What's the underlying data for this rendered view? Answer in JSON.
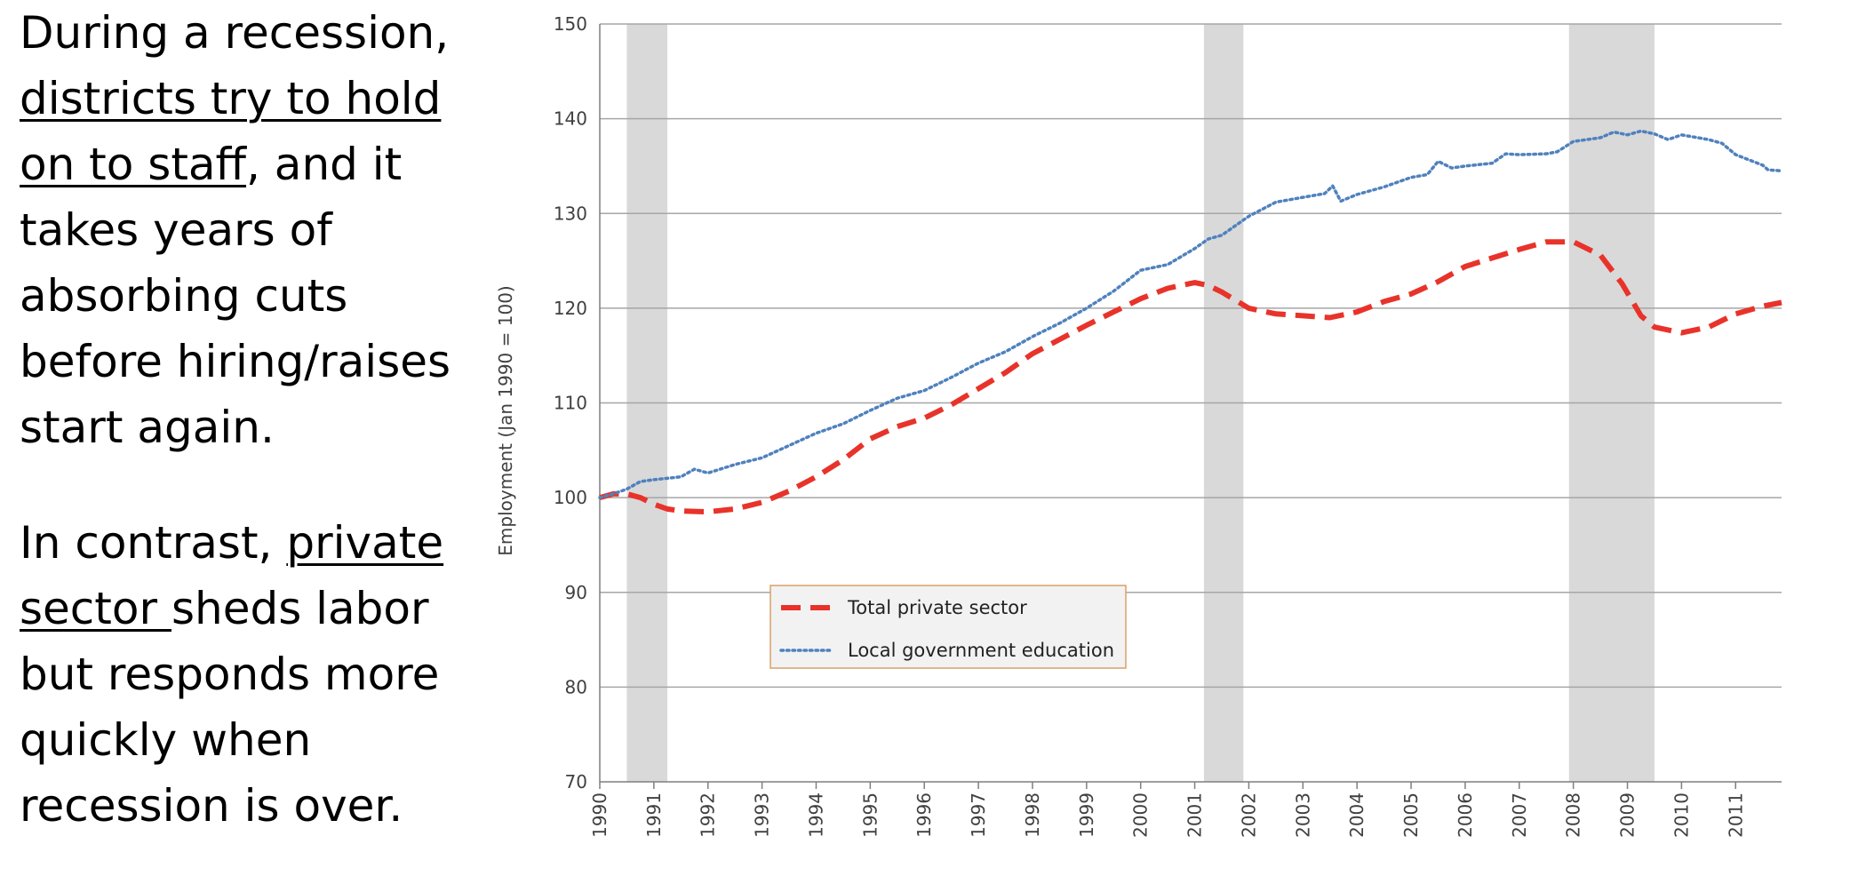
{
  "text": {
    "para1": [
      {
        "t": "During a recession, ",
        "u": false
      },
      {
        "t": "districts try to hold on to staff",
        "u": true
      },
      {
        "t": ", and it takes years of absorbing cuts before hiring/raises start again.",
        "u": false
      }
    ],
    "para2": [
      {
        "t": "In contrast, ",
        "u": false
      },
      {
        "t": "private sector ",
        "u": true
      },
      {
        "t": "sheds labor but responds more quickly when recession is over.",
        "u": false
      }
    ]
  },
  "chart_data": {
    "type": "line",
    "xlabel": "",
    "ylabel": "Employment (Jan 1990 = 100)",
    "ylim": [
      70,
      150
    ],
    "yticks": [
      70,
      80,
      90,
      100,
      110,
      120,
      130,
      140,
      150
    ],
    "xlim": [
      1990,
      2011.85
    ],
    "xticks": [
      "1990",
      "1991",
      "1992",
      "1993",
      "1994",
      "1995",
      "1996",
      "1997",
      "1998",
      "1999",
      "2000",
      "2001",
      "2002",
      "2003",
      "2004",
      "2005",
      "2006",
      "2007",
      "2008",
      "2009",
      "2010",
      "2011"
    ],
    "grid": true,
    "recessions": [
      [
        1990.5,
        1991.25
      ],
      [
        2001.17,
        2001.9
      ],
      [
        2007.92,
        2009.5
      ]
    ],
    "legend_position": "lower-left",
    "colors": {
      "private": "#e8332a",
      "education": "#4f81bd",
      "recession": "#d9d9d9",
      "legend_border": "#d9a06a"
    },
    "series": [
      {
        "name": "Total private sector",
        "style": "dashed",
        "points": [
          [
            1990,
            100
          ],
          [
            1990.25,
            100.4
          ],
          [
            1990.5,
            100.4
          ],
          [
            1990.75,
            100
          ],
          [
            1991,
            99.3
          ],
          [
            1991.25,
            98.8
          ],
          [
            1991.5,
            98.6
          ],
          [
            1992,
            98.5
          ],
          [
            1992.5,
            98.8
          ],
          [
            1993,
            99.5
          ],
          [
            1993.5,
            100.7
          ],
          [
            1994,
            102.2
          ],
          [
            1994.5,
            104
          ],
          [
            1995,
            106.2
          ],
          [
            1995.5,
            107.5
          ],
          [
            1996,
            108.4
          ],
          [
            1996.5,
            109.8
          ],
          [
            1997,
            111.5
          ],
          [
            1997.5,
            113.2
          ],
          [
            1998,
            115.2
          ],
          [
            1998.5,
            116.7
          ],
          [
            1999,
            118.2
          ],
          [
            1999.5,
            119.6
          ],
          [
            2000,
            121
          ],
          [
            2000.5,
            122.1
          ],
          [
            2001,
            122.7
          ],
          [
            2001.25,
            122.4
          ],
          [
            2001.5,
            121.7
          ],
          [
            2002,
            120
          ],
          [
            2002.5,
            119.4
          ],
          [
            2003,
            119.2
          ],
          [
            2003.5,
            119
          ],
          [
            2004,
            119.6
          ],
          [
            2004.5,
            120.7
          ],
          [
            2005,
            121.5
          ],
          [
            2005.5,
            122.8
          ],
          [
            2006,
            124.4
          ],
          [
            2006.5,
            125.3
          ],
          [
            2007,
            126.2
          ],
          [
            2007.5,
            127
          ],
          [
            2008,
            127
          ],
          [
            2008.5,
            125.6
          ],
          [
            2008.9,
            122.6
          ],
          [
            2009.25,
            119.2
          ],
          [
            2009.5,
            118
          ],
          [
            2010,
            117.4
          ],
          [
            2010.5,
            118
          ],
          [
            2011,
            119.4
          ],
          [
            2011.5,
            120.2
          ],
          [
            2011.85,
            120.6
          ]
        ]
      },
      {
        "name": "Local government education",
        "style": "dotted",
        "points": [
          [
            1990,
            100
          ],
          [
            1990.25,
            100.4
          ],
          [
            1990.5,
            100.9
          ],
          [
            1990.75,
            101.7
          ],
          [
            1991,
            101.9
          ],
          [
            1991.5,
            102.2
          ],
          [
            1991.75,
            103
          ],
          [
            1992,
            102.6
          ],
          [
            1992.5,
            103.5
          ],
          [
            1993,
            104.2
          ],
          [
            1993.5,
            105.5
          ],
          [
            1994,
            106.8
          ],
          [
            1994.5,
            107.8
          ],
          [
            1995,
            109.2
          ],
          [
            1995.5,
            110.5
          ],
          [
            1996,
            111.3
          ],
          [
            1996.5,
            112.7
          ],
          [
            1997,
            114.2
          ],
          [
            1997.5,
            115.4
          ],
          [
            1998,
            117
          ],
          [
            1998.5,
            118.4
          ],
          [
            1999,
            120
          ],
          [
            1999.5,
            121.8
          ],
          [
            2000,
            124
          ],
          [
            2000.5,
            124.6
          ],
          [
            2001,
            126.3
          ],
          [
            2001.25,
            127.3
          ],
          [
            2001.5,
            127.7
          ],
          [
            2002,
            129.7
          ],
          [
            2002.5,
            131.2
          ],
          [
            2003,
            131.7
          ],
          [
            2003.4,
            132.1
          ],
          [
            2003.55,
            132.9
          ],
          [
            2003.7,
            131.3
          ],
          [
            2004,
            132
          ],
          [
            2004.5,
            132.8
          ],
          [
            2005,
            133.8
          ],
          [
            2005.3,
            134.1
          ],
          [
            2005.5,
            135.5
          ],
          [
            2005.75,
            134.8
          ],
          [
            2006,
            135
          ],
          [
            2006.5,
            135.3
          ],
          [
            2006.75,
            136.3
          ],
          [
            2007,
            136.2
          ],
          [
            2007.5,
            136.3
          ],
          [
            2007.7,
            136.5
          ],
          [
            2008,
            137.6
          ],
          [
            2008.5,
            138
          ],
          [
            2008.75,
            138.6
          ],
          [
            2009,
            138.3
          ],
          [
            2009.25,
            138.7
          ],
          [
            2009.5,
            138.4
          ],
          [
            2009.75,
            137.8
          ],
          [
            2010,
            138.3
          ],
          [
            2010.5,
            137.8
          ],
          [
            2010.75,
            137.4
          ],
          [
            2011,
            136.2
          ],
          [
            2011.5,
            135.1
          ],
          [
            2011.6,
            134.6
          ],
          [
            2011.85,
            134.5
          ]
        ]
      }
    ]
  }
}
